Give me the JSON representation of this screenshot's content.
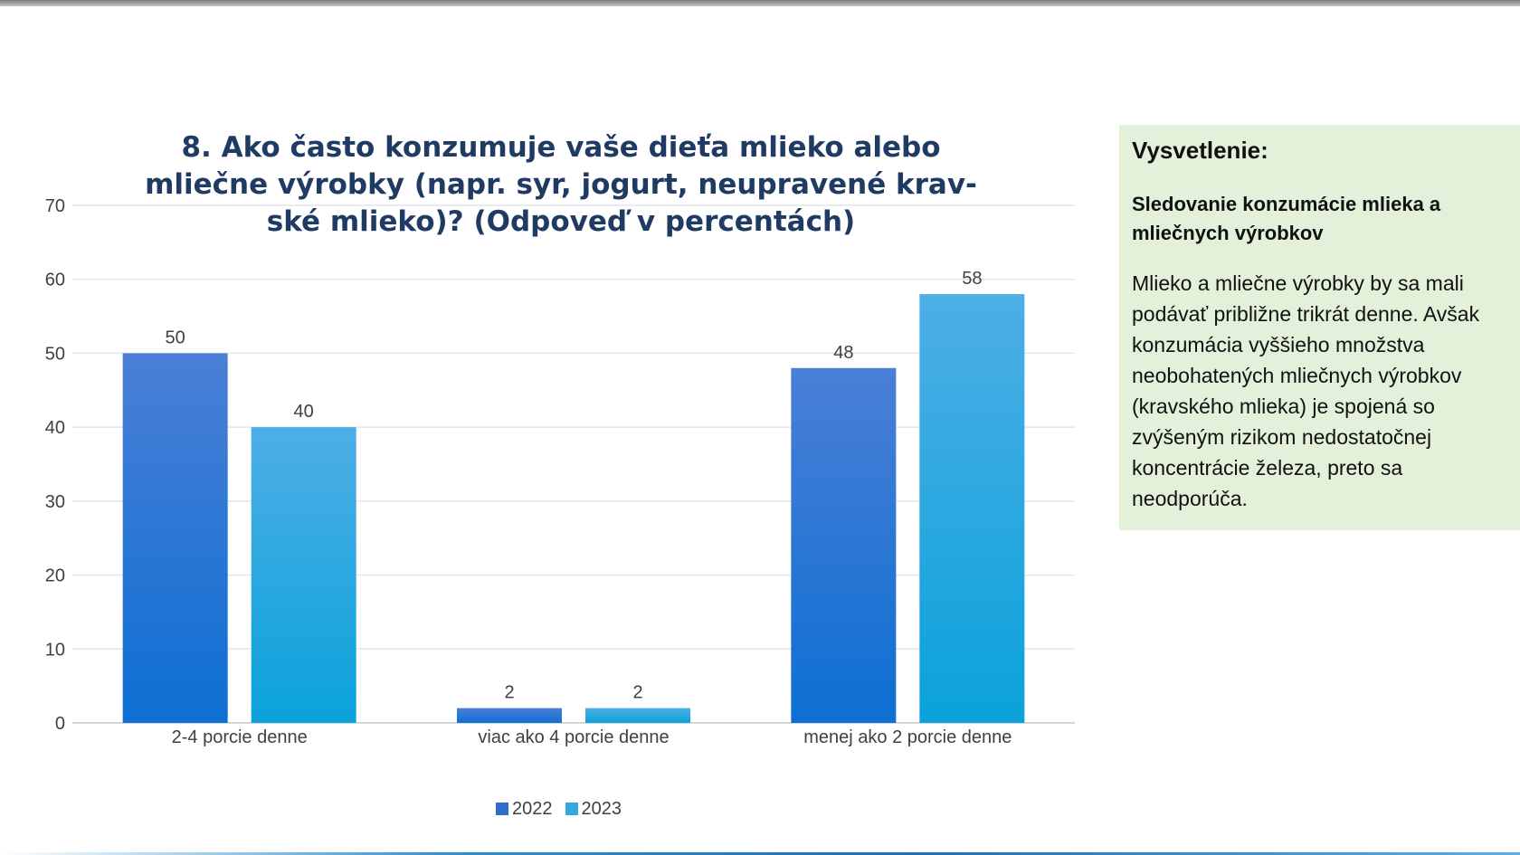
{
  "chart_data": {
    "type": "bar",
    "title": "8. Ako často konzumuje vaše dieťa mlieko alebo mliečne výrobky (napr. syr, jogurt, neupravené krav-ské mlieko)? (Odpoveď v percentách)",
    "categories": [
      "2-4 porcie denne",
      "viac ako 4 porcie denne",
      "menej ako 2 porcie denne"
    ],
    "series": [
      {
        "name": "2022",
        "values": [
          50,
          2,
          48
        ],
        "color": "#2f6ccc"
      },
      {
        "name": "2023",
        "values": [
          40,
          2,
          58
        ],
        "color": "#35a6e0"
      }
    ],
    "ylim": [
      0,
      70
    ],
    "yticks": [
      0,
      10,
      20,
      30,
      40,
      50,
      60,
      70
    ],
    "grid": true,
    "legend": "bottom"
  },
  "note": {
    "heading": "Vysvetlenie:",
    "subheading": "Sledovanie konzumácie mlieka a mliečnych výrobkov",
    "body": "Mlieko a mliečne výrobky by sa mali podávať približne trikrát denne. Avšak konzumácia vyššieho množstva neobohatených mliečnych výrobkov (kravského mlieka) je spojená so zvýšeným rizikom nedostatočnej koncentrácie železa, preto sa neodporúča."
  }
}
